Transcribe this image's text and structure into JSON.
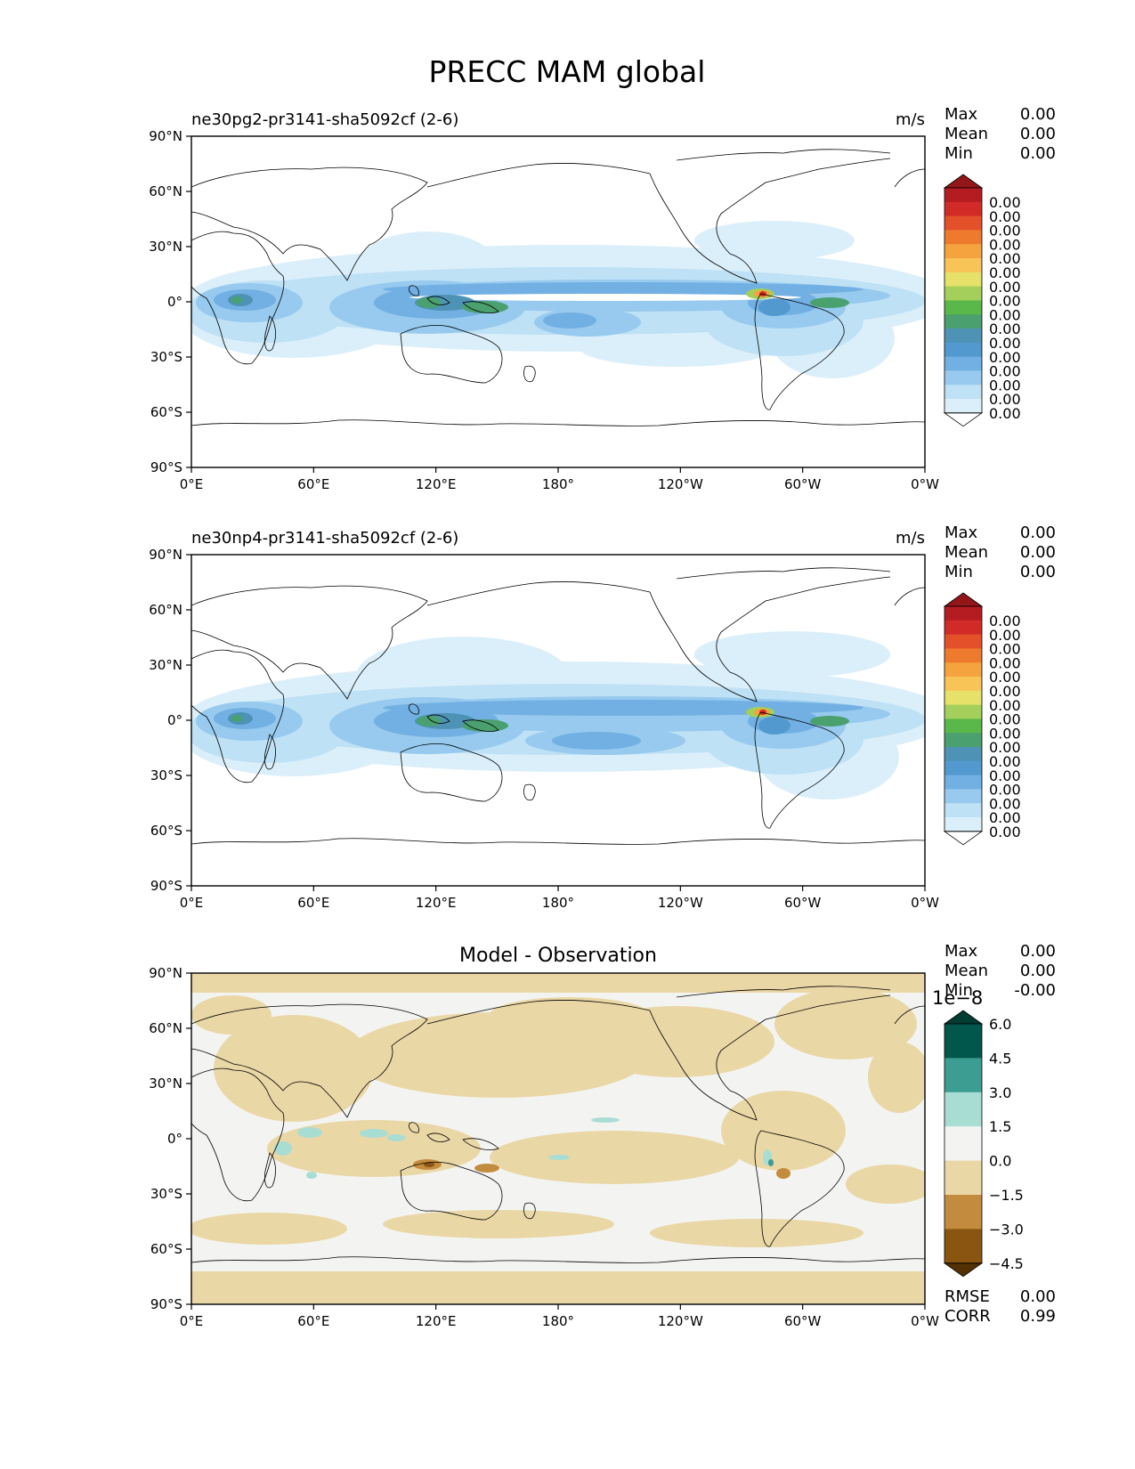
{
  "figure": {
    "title": "PRECC MAM global"
  },
  "axes": {
    "lon_ticks": [
      "0°E",
      "60°E",
      "120°E",
      "180°",
      "120°W",
      "60°W",
      "0°W"
    ],
    "lat_ticks": [
      "90°N",
      "60°N",
      "30°N",
      "0°",
      "30°S",
      "60°S",
      "90°S"
    ]
  },
  "panels": [
    {
      "id": "test",
      "title_left": "ne30pg2-pr3141-sha5092cf (2-6)",
      "title_center": "",
      "units": "m/s",
      "stats": [
        {
          "label": "Max",
          "value": "0.00"
        },
        {
          "label": "Mean",
          "value": "0.00"
        },
        {
          "label": "Min",
          "value": "0.00"
        }
      ],
      "colorbar": {
        "exponent": "",
        "labels": [
          "0.00",
          "0.00",
          "0.00",
          "0.00",
          "0.00",
          "0.00",
          "0.00",
          "0.00",
          "0.00",
          "0.00",
          "0.00",
          "0.00",
          "0.00",
          "0.00",
          "0.00",
          "0.00"
        ],
        "colors": [
          "#ffffff",
          "#dbeffa",
          "#bfe1f5",
          "#97caee",
          "#72b0e3",
          "#5199cf",
          "#4e93b6",
          "#4aa06f",
          "#5ab84a",
          "#a3cf5a",
          "#e6e168",
          "#f8c457",
          "#f5a33e",
          "#ee7a2d",
          "#e3502a",
          "#d22b27",
          "#b51c22",
          "#931618"
        ]
      },
      "footer_stats": []
    },
    {
      "id": "reference",
      "title_left": "ne30np4-pr3141-sha5092cf (2-6)",
      "title_center": "",
      "units": "m/s",
      "stats": [
        {
          "label": "Max",
          "value": "0.00"
        },
        {
          "label": "Mean",
          "value": "0.00"
        },
        {
          "label": "Min",
          "value": "0.00"
        }
      ],
      "colorbar": {
        "exponent": "",
        "labels": [
          "0.00",
          "0.00",
          "0.00",
          "0.00",
          "0.00",
          "0.00",
          "0.00",
          "0.00",
          "0.00",
          "0.00",
          "0.00",
          "0.00",
          "0.00",
          "0.00",
          "0.00",
          "0.00"
        ],
        "colors": [
          "#ffffff",
          "#dbeffa",
          "#bfe1f5",
          "#97caee",
          "#72b0e3",
          "#5199cf",
          "#4e93b6",
          "#4aa06f",
          "#5ab84a",
          "#a3cf5a",
          "#e6e168",
          "#f8c457",
          "#f5a33e",
          "#ee7a2d",
          "#e3502a",
          "#d22b27",
          "#b51c22",
          "#931618"
        ]
      },
      "footer_stats": []
    },
    {
      "id": "difference",
      "title_left": "",
      "title_center": "Model - Observation",
      "units": "",
      "stats": [
        {
          "label": "Max",
          "value": "0.00"
        },
        {
          "label": "Mean",
          "value": "0.00"
        },
        {
          "label": "Min",
          "value": "-0.00"
        }
      ],
      "colorbar": {
        "exponent": "1e−8",
        "labels": [
          "6.0",
          "4.5",
          "3.0",
          "1.5",
          "0.0",
          "−1.5",
          "−3.0",
          "−4.5"
        ],
        "colors": [
          "#543005",
          "#8a5510",
          "#c38b3e",
          "#ead7a6",
          "#f3f4f2",
          "#a8ddd4",
          "#3c9d93",
          "#01574c",
          "#013c33"
        ]
      },
      "footer_stats": [
        {
          "label": "RMSE",
          "value": "0.00"
        },
        {
          "label": "CORR",
          "value": "0.99"
        }
      ]
    }
  ]
}
